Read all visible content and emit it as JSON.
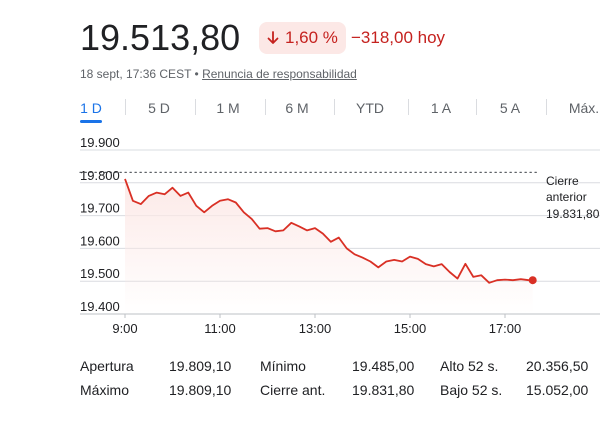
{
  "header": {
    "price": "19.513,80",
    "change_percent": "1,60 %",
    "change_direction_icon": "arrow-down-icon",
    "change_absolute": "−318,00 hoy",
    "timestamp": "18 sept, 17:36 CEST",
    "separator": " • ",
    "disclaimer": "Renuncia de responsabilidad"
  },
  "tabs": [
    {
      "label": "1 D",
      "active": true
    },
    {
      "label": "5 D",
      "active": false
    },
    {
      "label": "1 M",
      "active": false
    },
    {
      "label": "6 M",
      "active": false
    },
    {
      "label": "YTD",
      "active": false
    },
    {
      "label": "1 A",
      "active": false
    },
    {
      "label": "5 A",
      "active": false
    },
    {
      "label": "Máx.",
      "active": false
    }
  ],
  "colors": {
    "negative": "#c5221f",
    "negative_bg": "#fce8e6",
    "accent": "#1a73e8",
    "line": "#d93025",
    "grid": "#dadce0"
  },
  "chart_data": {
    "type": "area",
    "yticks": [
      "19.900",
      "19.800",
      "19.700",
      "19.600",
      "19.500",
      "19.400"
    ],
    "ylim": [
      19400,
      19900
    ],
    "xticks": [
      "9:00",
      "11:00",
      "13:00",
      "15:00",
      "17:00"
    ],
    "previous_close": {
      "label": "Cierre anterior",
      "value": 19831.8,
      "value_label": "19.831,80"
    },
    "series": [
      {
        "x": [
          "09:00",
          "09:10",
          "09:20",
          "09:30",
          "09:40",
          "09:50",
          "10:00",
          "10:10",
          "10:20",
          "10:30",
          "10:40",
          "10:50",
          "11:00",
          "11:10",
          "11:20",
          "11:30",
          "11:40",
          "11:50",
          "12:00",
          "12:10",
          "12:20",
          "12:30",
          "12:40",
          "12:50",
          "13:00",
          "13:10",
          "13:20",
          "13:30",
          "13:40",
          "13:50",
          "14:00",
          "14:10",
          "14:20",
          "14:30",
          "14:40",
          "14:50",
          "15:00",
          "15:10",
          "15:20",
          "15:30",
          "15:40",
          "15:50",
          "16:00",
          "16:10",
          "16:20",
          "16:30",
          "16:40",
          "16:50",
          "17:00",
          "17:10",
          "17:20",
          "17:30",
          "17:35"
        ],
        "values": [
          19812,
          19745,
          19735,
          19760,
          19770,
          19765,
          19785,
          19760,
          19770,
          19730,
          19710,
          19730,
          19745,
          19750,
          19740,
          19710,
          19690,
          19660,
          19662,
          19652,
          19655,
          19678,
          19667,
          19655,
          19662,
          19645,
          19620,
          19633,
          19600,
          19582,
          19572,
          19560,
          19542,
          19560,
          19565,
          19560,
          19575,
          19568,
          19552,
          19545,
          19552,
          19528,
          19508,
          19553,
          19513,
          19518,
          19495,
          19503,
          19505,
          19503,
          19506,
          19503,
          19503
        ]
      }
    ]
  },
  "stats": [
    {
      "label": "Apertura",
      "value": "19.809,10"
    },
    {
      "label": "Máximo",
      "value": "19.809,10"
    },
    {
      "label": "Mínimo",
      "value": "19.485,00"
    },
    {
      "label": "Cierre ant.",
      "value": "19.831,80"
    },
    {
      "label": "Alto 52 s.",
      "value": "20.356,50"
    },
    {
      "label": "Bajo 52 s.",
      "value": "15.052,00"
    }
  ]
}
